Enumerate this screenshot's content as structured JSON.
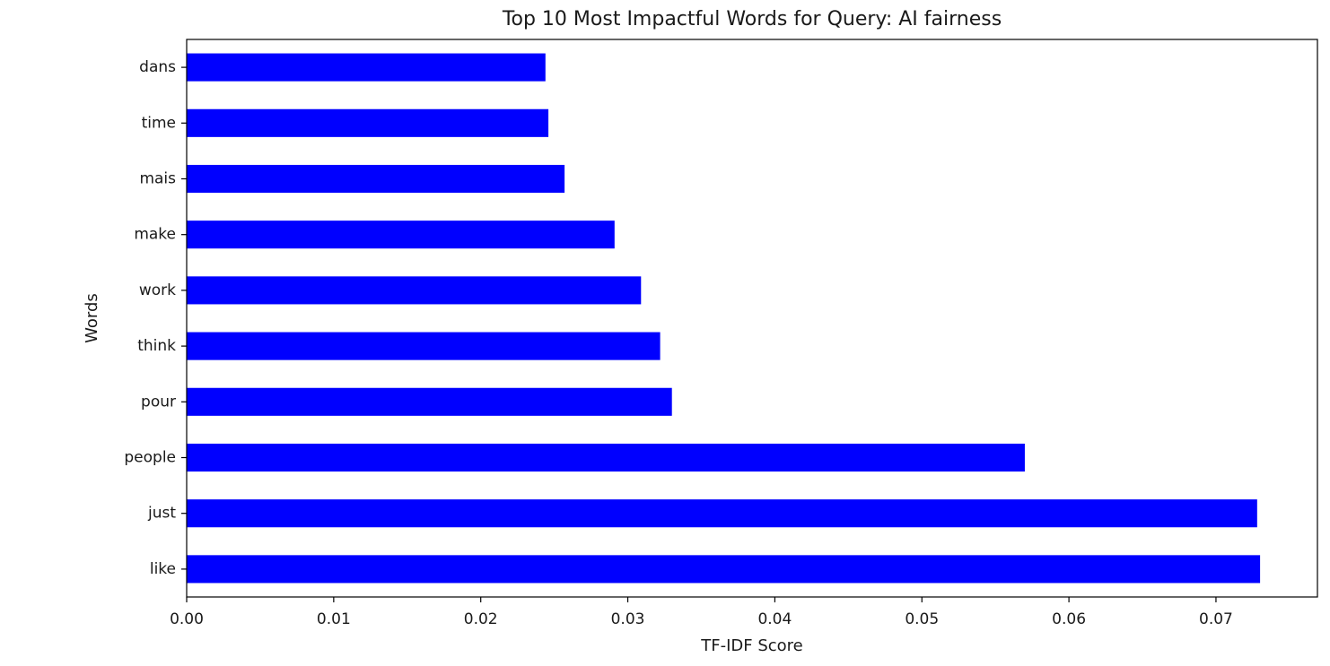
{
  "chart_data": {
    "type": "bar",
    "orientation": "horizontal",
    "title": "Top 10 Most Impactful Words for Query: AI fairness",
    "xlabel": "TF-IDF Score",
    "ylabel": "Words",
    "categories": [
      "like",
      "just",
      "people",
      "pour",
      "think",
      "work",
      "make",
      "mais",
      "time",
      "dans"
    ],
    "values": [
      0.073,
      0.0728,
      0.057,
      0.033,
      0.0322,
      0.0309,
      0.0291,
      0.0257,
      0.0246,
      0.0244
    ],
    "xlim": [
      0.0,
      0.0769
    ],
    "xticks": [
      0.0,
      0.01,
      0.02,
      0.03,
      0.04,
      0.05,
      0.06,
      0.07
    ],
    "xtick_labels": [
      "0.00",
      "0.01",
      "0.02",
      "0.03",
      "0.04",
      "0.05",
      "0.06",
      "0.07"
    ],
    "bar_color": "#0000ff",
    "grid": false,
    "legend": "none"
  }
}
